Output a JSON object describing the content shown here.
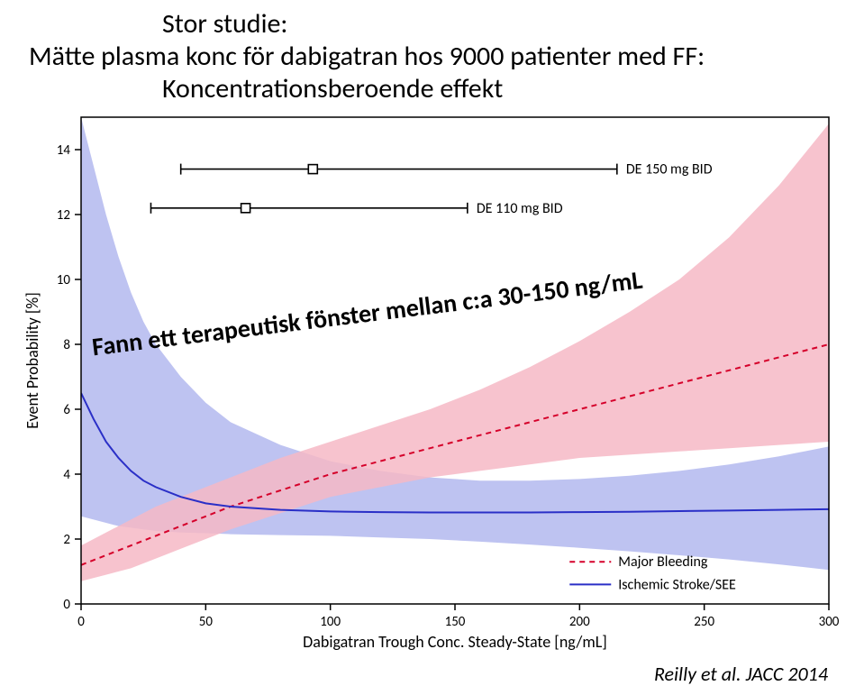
{
  "title_line1": "Stor studie:",
  "title_line2": "Mätte plasma konc för dabigatran hos 9000 patienter med FF:",
  "title_line3": "Koncentrationsberoende effekt",
  "overlay_text": "Fann ett terapeutisk fönster mellan c:a 30-150 ng/mL",
  "citation": "Reilly et al. JACC 2014",
  "chart": {
    "type": "line-with-bands",
    "xlabel": "Dabigatran Trough Conc. Steady-State [ng/mL]",
    "ylabel": "Event Probability [%]",
    "xlabel_fontsize": 18,
    "ylabel_fontsize": 18,
    "tick_fontsize": 15,
    "xlim": [
      0,
      300
    ],
    "ylim": [
      0,
      15
    ],
    "xtick_step": 50,
    "yticks": [
      0,
      2,
      4,
      6,
      8,
      10,
      12,
      14
    ],
    "background_color": "#ffffff",
    "axis_color": "#000000",
    "series": {
      "bleeding": {
        "label": "Major Bleeding",
        "color": "#d5002a",
        "dash": "6 5",
        "line_width": 2,
        "x": [
          0,
          10,
          20,
          30,
          40,
          50,
          60,
          80,
          100,
          120,
          140,
          160,
          180,
          200,
          220,
          240,
          260,
          280,
          300
        ],
        "y": [
          1.2,
          1.5,
          1.8,
          2.1,
          2.4,
          2.7,
          3.0,
          3.5,
          4.0,
          4.4,
          4.8,
          5.2,
          5.6,
          6.0,
          6.4,
          6.8,
          7.2,
          7.6,
          8.0
        ],
        "lo": [
          0.7,
          0.9,
          1.1,
          1.4,
          1.7,
          2.0,
          2.3,
          2.8,
          3.3,
          3.6,
          3.9,
          4.1,
          4.3,
          4.5,
          4.6,
          4.7,
          4.8,
          4.9,
          5.0
        ],
        "hi": [
          1.8,
          2.2,
          2.6,
          3.0,
          3.3,
          3.6,
          3.9,
          4.5,
          5.0,
          5.5,
          6.0,
          6.6,
          7.3,
          8.1,
          9.0,
          10.0,
          11.3,
          12.9,
          14.8
        ],
        "band_color": "#f6b9c6",
        "band_opacity": 0.85
      },
      "stroke": {
        "label": "Ischemic Stroke/SEE",
        "color": "#2a2fc7",
        "dash": "none",
        "line_width": 2,
        "x": [
          0,
          5,
          10,
          15,
          20,
          25,
          30,
          40,
          50,
          60,
          80,
          100,
          120,
          140,
          160,
          180,
          200,
          220,
          240,
          260,
          280,
          300
        ],
        "y": [
          6.5,
          5.7,
          5.0,
          4.5,
          4.1,
          3.8,
          3.6,
          3.3,
          3.1,
          3.0,
          2.9,
          2.85,
          2.83,
          2.82,
          2.82,
          2.82,
          2.83,
          2.84,
          2.86,
          2.88,
          2.9,
          2.92
        ],
        "lo": [
          2.7,
          2.6,
          2.5,
          2.4,
          2.35,
          2.3,
          2.25,
          2.2,
          2.18,
          2.15,
          2.12,
          2.1,
          2.05,
          2.0,
          1.92,
          1.83,
          1.73,
          1.62,
          1.5,
          1.37,
          1.22,
          1.05
        ],
        "hi": [
          15,
          13.5,
          12.0,
          10.7,
          9.6,
          8.7,
          8.0,
          7.0,
          6.2,
          5.6,
          4.9,
          4.4,
          4.1,
          3.9,
          3.8,
          3.8,
          3.85,
          3.95,
          4.1,
          4.3,
          4.55,
          4.85
        ],
        "band_color": "#b3b9ef",
        "band_opacity": 0.85
      }
    },
    "dose_markers": {
      "de150": {
        "label": "DE 150 mg BID",
        "marker_x": 93,
        "lo": 40,
        "hi": 215,
        "y_pos": 13.4,
        "fontsize": 16
      },
      "de110": {
        "label": "DE 110 mg BID",
        "marker_x": 66,
        "lo": 28,
        "hi": 155,
        "y_pos": 12.2,
        "fontsize": 16
      }
    },
    "legend": {
      "x": 196,
      "y_top": 1.3,
      "fontsize": 16
    }
  }
}
